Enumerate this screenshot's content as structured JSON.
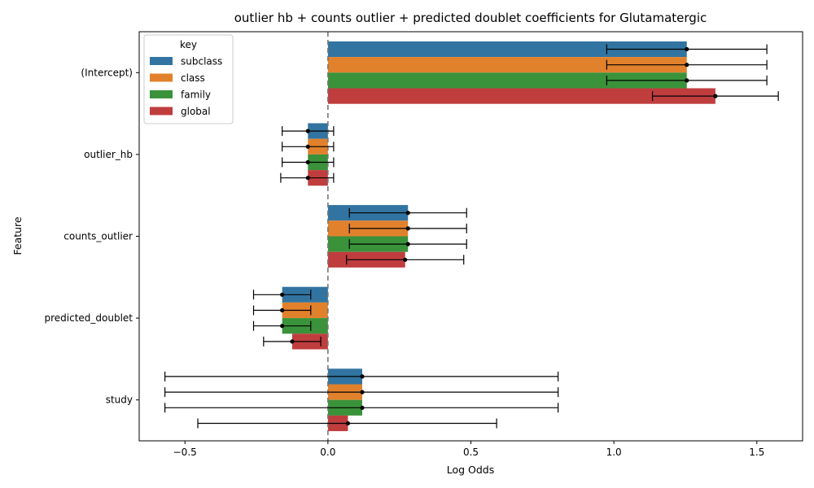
{
  "chart_data": {
    "type": "bar",
    "orientation": "horizontal",
    "title": "outlier hb + counts outlier + predicted doublet coefficients for Glutamatergic",
    "xlabel": "Log Odds",
    "ylabel": "Feature",
    "xlim": [
      -0.66,
      1.66
    ],
    "xticks": [
      {
        "value": -0.5,
        "label": "−0.5"
      },
      {
        "value": 0.0,
        "label": "0.0"
      },
      {
        "value": 0.5,
        "label": "0.5"
      },
      {
        "value": 1.0,
        "label": "1.0"
      },
      {
        "value": 1.5,
        "label": "1.5"
      }
    ],
    "reference_line": 0,
    "categories": [
      "(Intercept)",
      "outlier_hb",
      "counts_outlier",
      "predicted_doublet",
      "study"
    ],
    "legend": {
      "title": "key",
      "position": "top-left"
    },
    "series": [
      {
        "name": "subclass",
        "color": "#3274a1",
        "values": [
          1.255,
          -0.07,
          0.28,
          -0.16,
          0.12
        ],
        "ci_low": [
          0.975,
          -0.16,
          0.075,
          -0.26,
          -0.57
        ],
        "ci_high": [
          1.535,
          0.02,
          0.485,
          -0.06,
          0.805
        ]
      },
      {
        "name": "class",
        "color": "#e1812c",
        "values": [
          1.255,
          -0.07,
          0.28,
          -0.16,
          0.12
        ],
        "ci_low": [
          0.975,
          -0.16,
          0.075,
          -0.26,
          -0.57
        ],
        "ci_high": [
          1.535,
          0.02,
          0.485,
          -0.06,
          0.805
        ]
      },
      {
        "name": "family",
        "color": "#3a923a",
        "values": [
          1.255,
          -0.07,
          0.28,
          -0.16,
          0.12
        ],
        "ci_low": [
          0.975,
          -0.16,
          0.075,
          -0.26,
          -0.57
        ],
        "ci_high": [
          1.535,
          0.02,
          0.485,
          -0.06,
          0.805
        ]
      },
      {
        "name": "global",
        "color": "#c03d3e",
        "values": [
          1.355,
          -0.07,
          0.27,
          -0.125,
          0.07
        ],
        "ci_low": [
          1.135,
          -0.165,
          0.065,
          -0.225,
          -0.455
        ],
        "ci_high": [
          1.575,
          0.02,
          0.475,
          -0.025,
          0.59
        ]
      }
    ]
  }
}
